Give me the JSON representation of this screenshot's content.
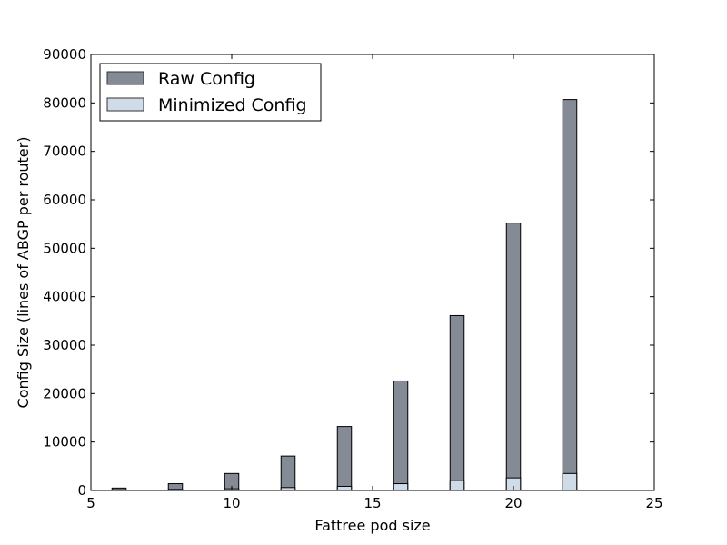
{
  "chart_data": {
    "type": "bar",
    "title": "",
    "xlabel": "Fattree pod size",
    "ylabel": "Config Size (lines of ABGP per router)",
    "xlim": [
      5,
      25
    ],
    "ylim": [
      0,
      90000
    ],
    "x_ticks": [
      5,
      10,
      15,
      20,
      25
    ],
    "y_ticks": [
      0,
      10000,
      20000,
      30000,
      40000,
      50000,
      60000,
      70000,
      80000,
      90000
    ],
    "x_tick_labels": [
      "5",
      "10",
      "15",
      "20",
      "25"
    ],
    "y_tick_labels": [
      "0",
      "10000",
      "20000",
      "30000",
      "40000",
      "50000",
      "60000",
      "70000",
      "80000",
      "90000"
    ],
    "x": [
      6,
      8,
      10,
      12,
      14,
      16,
      18,
      20,
      22
    ],
    "bar_width": 0.5,
    "grid": false,
    "legend_position": "top-left",
    "series": [
      {
        "name": "Raw Config",
        "color": "#848b95",
        "values": [
          500,
          1400,
          3500,
          7100,
          13200,
          22600,
          36100,
          55200,
          80700
        ]
      },
      {
        "name": "Minimized Config",
        "color": "#cfdbe6",
        "values": [
          150,
          220,
          350,
          600,
          850,
          1400,
          2000,
          2600,
          3500
        ]
      }
    ]
  }
}
